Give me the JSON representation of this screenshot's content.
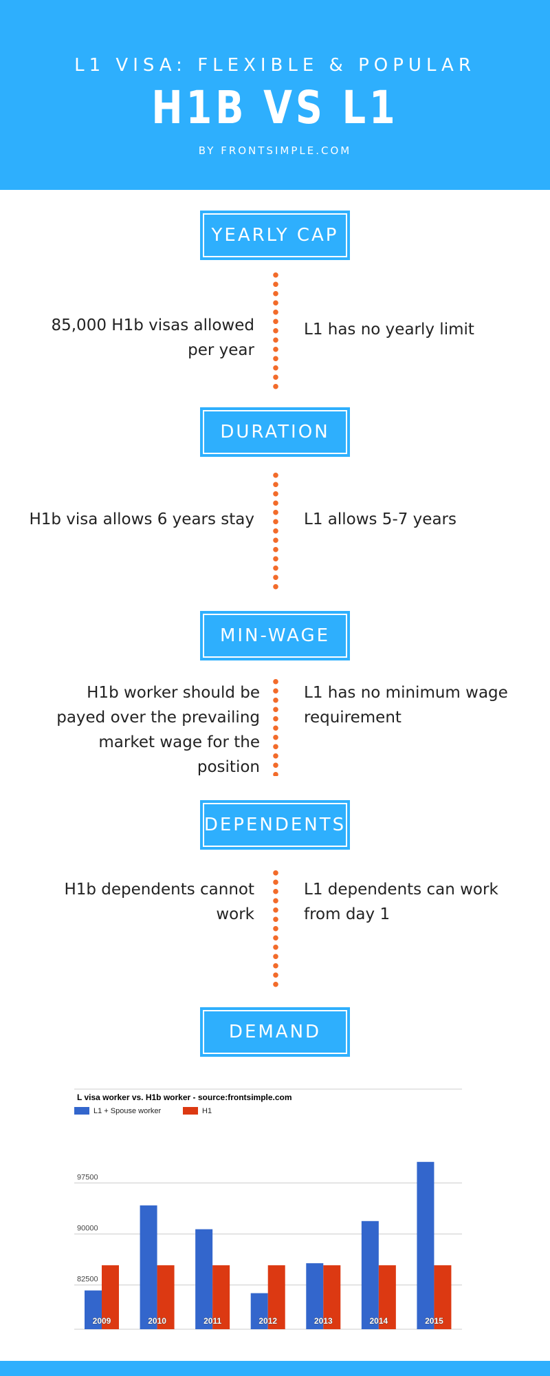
{
  "header": {
    "kicker": "L1 VISA: FLEXIBLE & POPULAR",
    "title": "H1B VS L1",
    "byline": "BY FRONTSIMPLE.COM"
  },
  "sections": [
    {
      "heading": "YEARLY CAP",
      "left": "85,000 H1b visas allowed per year",
      "right": "L1 has no yearly limit"
    },
    {
      "heading": "DURATION",
      "left": "H1b visa allows 6 years stay",
      "right": "L1 allows 5-7 years"
    },
    {
      "heading": "MIN-WAGE",
      "left": "H1b worker should be payed over the prevailing market wage for the position",
      "right": "L1 has no minimum wage requirement"
    },
    {
      "heading": "DEPENDENTS",
      "left": "H1b dependents cannot work",
      "right": "L1 dependents can work from day 1"
    },
    {
      "heading": "DEMAND"
    }
  ],
  "colors": {
    "accent": "#2eaffd",
    "dots": "#f26b2a",
    "series_l1": "#3366cc",
    "series_h1": "#dc3912"
  },
  "chart_data": {
    "type": "bar",
    "title": "L visa worker vs. H1b worker - source:frontsimple.com",
    "categories": [
      "2009",
      "2010",
      "2011",
      "2012",
      "2013",
      "2014",
      "2015"
    ],
    "series": [
      {
        "name": "L1 + Spouse worker",
        "values": [
          81700,
          94200,
          90700,
          81300,
          85700,
          91900,
          100600
        ]
      },
      {
        "name": "H1",
        "values": [
          85400,
          85400,
          85400,
          85400,
          85400,
          85400,
          85400
        ]
      }
    ],
    "yticks": [
      82500,
      90000,
      97500
    ],
    "ylim": [
      76000,
      102500
    ],
    "grid": true,
    "legend": "top-left"
  }
}
